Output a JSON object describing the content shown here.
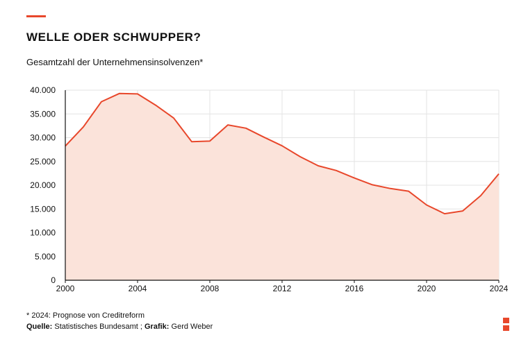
{
  "header": {
    "title": "WELLE ODER SCHWUPPER?",
    "subtitle": "Gesamtzahl der Unternehmensinsolvenzen*"
  },
  "footer": {
    "footnote": "* 2024: Prognose von Creditreform",
    "source_label": "Quelle:",
    "source_value": "Statistisches Bundesamt ;",
    "graphic_label": "Grafik:",
    "graphic_value": "Gerd Weber"
  },
  "colors": {
    "accent": "#e8472b",
    "line": "#e8472b",
    "area_fill": "#fbe3da",
    "grid": "#e3e3e3",
    "axis": "#111111"
  },
  "chart_data": {
    "type": "area",
    "title": "WELLE ODER SCHWUPPER?",
    "subtitle": "Gesamtzahl der Unternehmensinsolvenzen*",
    "xlabel": "",
    "ylabel": "",
    "xlim": [
      2000,
      2024
    ],
    "ylim": [
      0,
      40000
    ],
    "x_ticks": [
      2000,
      2004,
      2008,
      2012,
      2016,
      2020,
      2024
    ],
    "y_ticks": [
      0,
      5000,
      10000,
      15000,
      20000,
      25000,
      30000,
      35000,
      40000
    ],
    "y_tick_labels": [
      "0",
      "5.000",
      "10.000",
      "15.000",
      "20.000",
      "25.000",
      "30.000",
      "35.000",
      "40.000"
    ],
    "grid": true,
    "legend": "none",
    "series": [
      {
        "x": [
          2000,
          2001,
          2002,
          2003,
          2004,
          2005,
          2006,
          2007,
          2008,
          2009,
          2010,
          2011,
          2012,
          2013,
          2014,
          2015,
          2016,
          2017,
          2018,
          2019,
          2020,
          2021,
          2022,
          2023,
          2024
        ],
        "values": [
          28235,
          32278,
          37579,
          39320,
          39213,
          36843,
          34137,
          29160,
          29291,
          32687,
          31998,
          30099,
          28297,
          25995,
          24085,
          23101,
          21518,
          20093,
          19302,
          18749,
          15841,
          13993,
          14590,
          17814,
          22400
        ]
      }
    ]
  }
}
